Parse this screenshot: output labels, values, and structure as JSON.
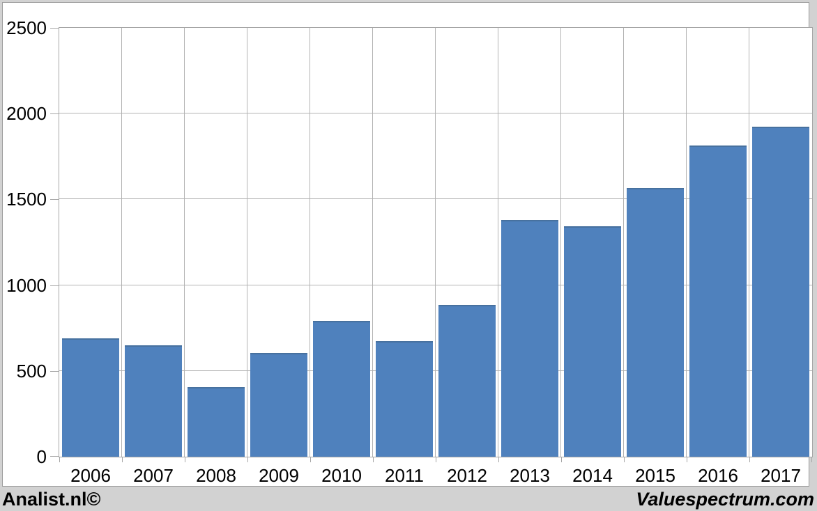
{
  "footer": {
    "left": "Analist.nl©",
    "right": "Valuespectrum.com"
  },
  "colors": {
    "bar_fill": "#4f81bd",
    "bar_top_edge": "#47719f",
    "gridline": "#b2b2b2",
    "axis_border": "#a6a6a6",
    "panel_background": "#ffffff",
    "frame_background": "#d2d2d2",
    "text": "#000000"
  },
  "chart_data": {
    "type": "bar",
    "categories": [
      "2006",
      "2007",
      "2008",
      "2009",
      "2010",
      "2011",
      "2012",
      "2013",
      "2014",
      "2015",
      "2016",
      "2017"
    ],
    "values": [
      690,
      650,
      405,
      605,
      790,
      675,
      885,
      1380,
      1345,
      1565,
      1815,
      1925
    ],
    "title": "",
    "xlabel": "",
    "ylabel": "",
    "ylim": [
      0,
      2500
    ],
    "yticks": [
      0,
      500,
      1000,
      1500,
      2000,
      2500
    ],
    "grid": true,
    "legend": null
  }
}
